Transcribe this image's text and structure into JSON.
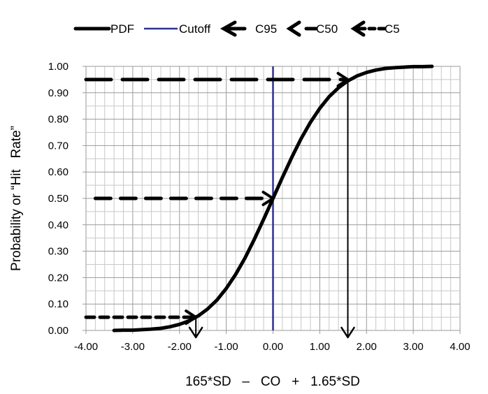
{
  "chart_data": {
    "type": "line",
    "title": "",
    "xlabel": "165*SD   –   CO   +   1.65*SD",
    "ylabel": "Probability or “Hit   Rate”",
    "xlim": [
      -4,
      4
    ],
    "ylim": [
      0,
      1
    ],
    "x_ticks": [
      "-4.00",
      "-3.00",
      "-2.00",
      "-1.00",
      "0.00",
      "1.00",
      "2.00",
      "3.00",
      "4.00"
    ],
    "y_ticks": [
      "0.00",
      "0.10",
      "0.20",
      "0.30",
      "0.40",
      "0.50",
      "0.60",
      "0.70",
      "0.80",
      "0.90",
      "1.00"
    ],
    "grid": true,
    "legend_position": "top",
    "series": [
      {
        "name": "PDF",
        "color": "#000000",
        "style": "solid-thick",
        "x": [
          -3.4,
          -3.2,
          -3.0,
          -2.8,
          -2.6,
          -2.4,
          -2.2,
          -2.0,
          -1.8,
          -1.6,
          -1.4,
          -1.2,
          -1.0,
          -0.8,
          -0.6,
          -0.4,
          -0.2,
          0,
          0.2,
          0.4,
          0.6,
          0.8,
          1.0,
          1.2,
          1.4,
          1.6,
          1.8,
          2.0,
          2.2,
          2.4,
          2.6,
          2.8,
          3.0,
          3.2,
          3.4
        ],
        "y": [
          0.0,
          0.001,
          0.001,
          0.003,
          0.005,
          0.008,
          0.014,
          0.023,
          0.036,
          0.055,
          0.081,
          0.115,
          0.159,
          0.212,
          0.274,
          0.345,
          0.421,
          0.5,
          0.579,
          0.655,
          0.726,
          0.788,
          0.841,
          0.885,
          0.919,
          0.945,
          0.964,
          0.977,
          0.986,
          0.992,
          0.995,
          0.997,
          0.999,
          0.999,
          1.0
        ]
      },
      {
        "name": "Cutoff",
        "color": "#2e3192",
        "style": "solid-thin",
        "x": [
          0,
          0
        ],
        "y": [
          0,
          1
        ]
      },
      {
        "name": "C95",
        "color": "#000000",
        "style": "long-dash-arrow",
        "x": [
          -4,
          1.6
        ],
        "y": [
          0.95,
          0.95
        ],
        "drop_to_axis": true
      },
      {
        "name": "C50",
        "color": "#000000",
        "style": "dash-arrow",
        "x": [
          -3.8,
          0
        ],
        "y": [
          0.5,
          0.5
        ]
      },
      {
        "name": "C5",
        "color": "#000000",
        "style": "short-dash-arrow",
        "x": [
          -4,
          -1.65
        ],
        "y": [
          0.05,
          0.05
        ],
        "drop_to_axis": true
      }
    ]
  }
}
